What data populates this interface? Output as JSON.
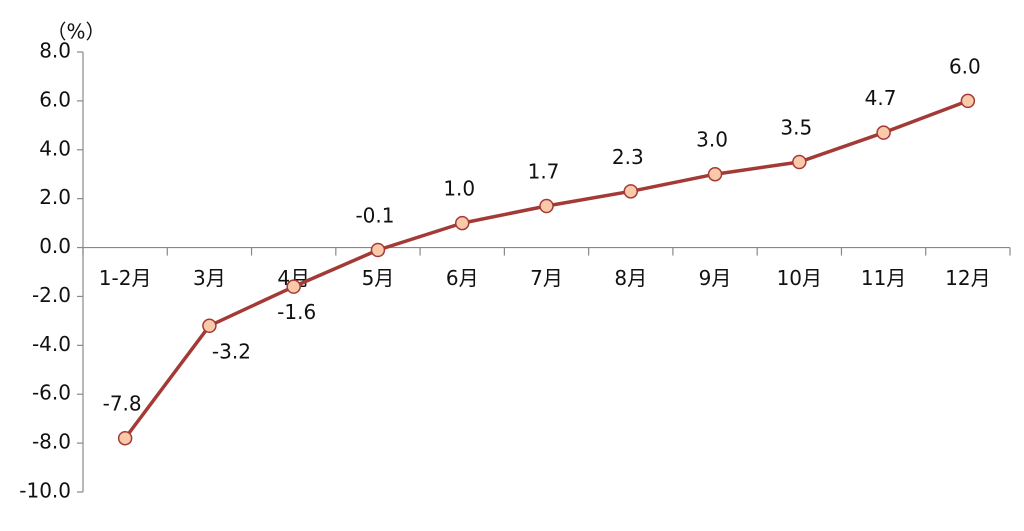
{
  "chart_data": {
    "type": "line",
    "y_label": "（%）",
    "categories": [
      "1-2月",
      "3月",
      "4月",
      "5月",
      "6月",
      "7月",
      "8月",
      "9月",
      "10月",
      "11月",
      "12月"
    ],
    "values": [
      -7.8,
      -3.2,
      -1.6,
      -0.1,
      1.0,
      1.7,
      2.3,
      3.0,
      3.5,
      4.7,
      6.0
    ],
    "value_labels": [
      "-7.8",
      "-3.2",
      "-1.6",
      "-0.1",
      "1.0",
      "1.7",
      "2.3",
      "3.0",
      "3.5",
      "4.7",
      "6.0"
    ],
    "color": "#a33a36",
    "marker_color": "#f9c9aa",
    "ylim": [
      -10,
      8
    ],
    "yticks": [
      {
        "value": -10,
        "label": "-10.0"
      },
      {
        "value": -8,
        "label": "-8.0"
      },
      {
        "value": -6,
        "label": "-6.0"
      },
      {
        "value": -4,
        "label": "-4.0"
      },
      {
        "value": -2,
        "label": "-2.0"
      },
      {
        "value": 0,
        "label": "0.0"
      },
      {
        "value": 2,
        "label": "2.0"
      },
      {
        "value": 4,
        "label": "4.0"
      },
      {
        "value": 6,
        "label": "6.0"
      },
      {
        "value": 8,
        "label": "8.0"
      }
    ],
    "grid": false
  }
}
